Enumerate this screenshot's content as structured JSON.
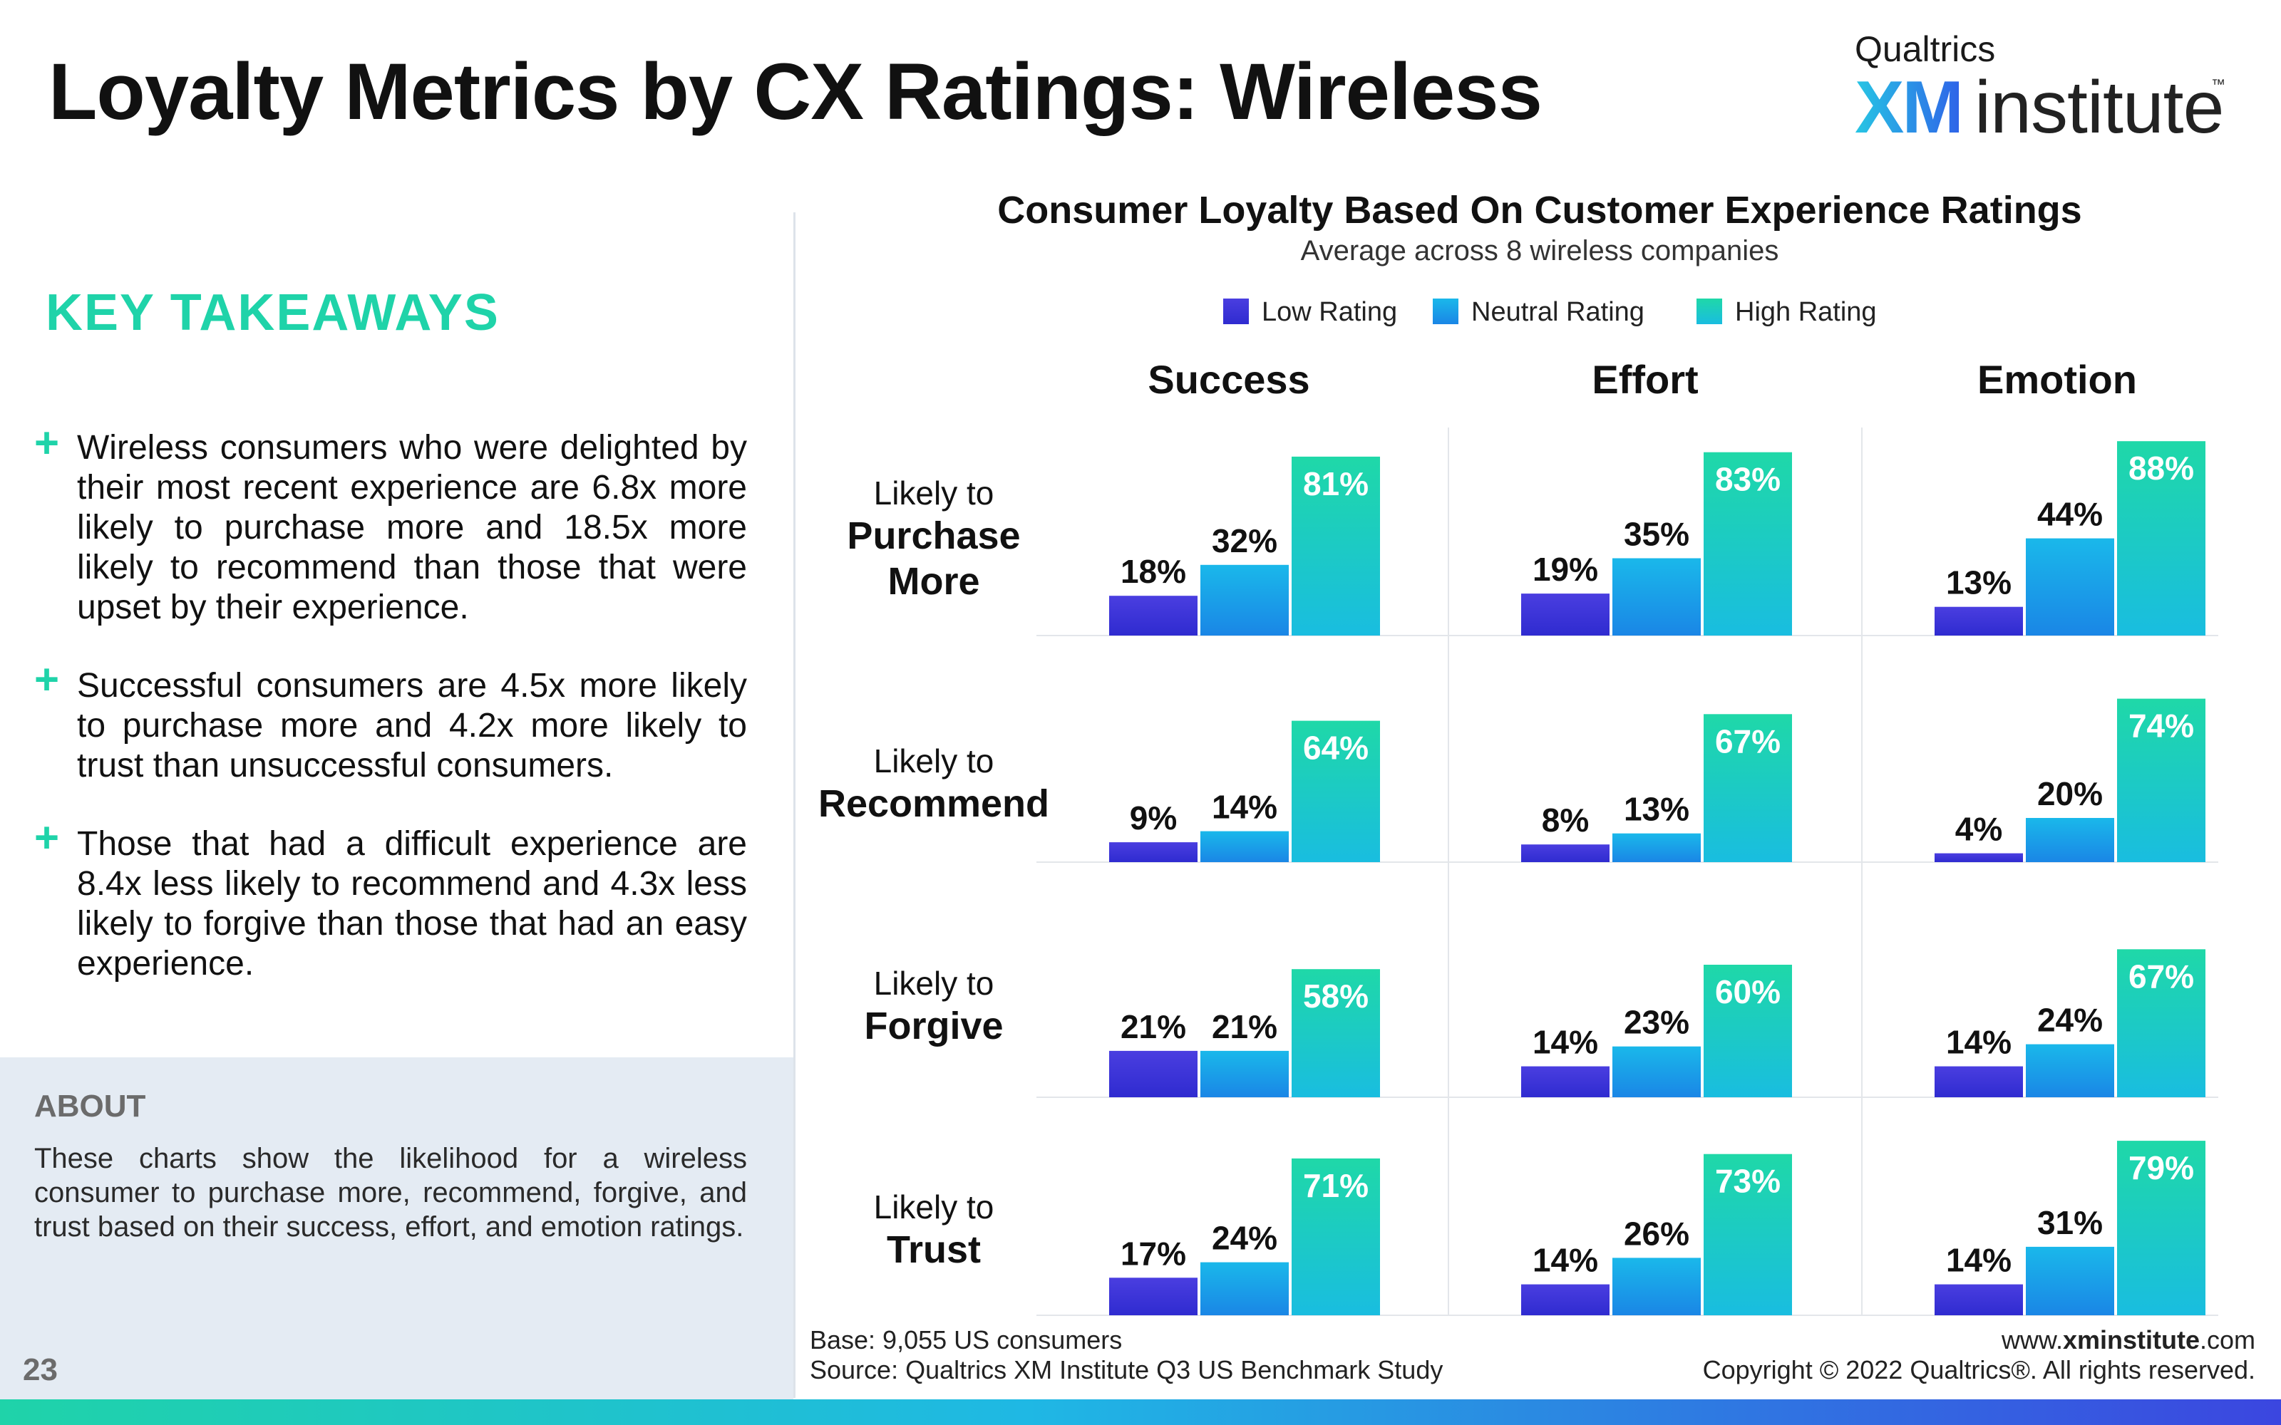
{
  "page": {
    "title": "Loyalty Metrics by CX Ratings: Wireless",
    "page_number": "23",
    "logo": {
      "brand": "Qualtrics",
      "xm": "XM",
      "institute": "institute",
      "tm": "™"
    }
  },
  "key_takeaways": {
    "heading": "KEY TAKEAWAYS",
    "items": [
      "Wireless consumers who were delighted by their most recent experience are 6.8x more likely to purchase more and 18.5x more likely to recommend than those that were upset by their experience.",
      "Successful consumers are 4.5x more likely to purchase more and 4.2x more likely to trust than unsuccessful consumers.",
      "Those that had a difficult experience are 8.4x less likely to recommend and 4.3x less likely to forgive than those that had an easy experience."
    ]
  },
  "about": {
    "heading": "ABOUT",
    "text": "These charts show the likelihood for a wireless consumer to purchase more, recommend, forgive, and trust based on their success, effort, and emotion ratings."
  },
  "footer": {
    "base": "Base: 9,055 US consumers",
    "source": "Source: Qualtrics XM Institute Q3 US Benchmark Study",
    "url_prefix": "www.",
    "url_bold": "xminstitute",
    "url_suffix": ".com",
    "copyright": "Copyright © 2022 Qualtrics®. All rights reserved."
  },
  "colors": {
    "accent_green": "#1fd3a9",
    "low_top": "#4a3ee0",
    "low_bottom": "#2f2bd0",
    "neutral_top": "#1ab8ea",
    "neutral_bottom": "#1a86e6",
    "high_top": "#1fd8a8",
    "high_bottom": "#19bde0"
  },
  "chart_data": {
    "type": "bar",
    "title": "Consumer Loyalty Based On Customer Experience Ratings",
    "subtitle": "Average across 8 wireless companies",
    "legend": [
      "Low Rating",
      "Neutral Rating",
      "High Rating"
    ],
    "legend_placement": "top-center",
    "ylim": [
      0,
      100
    ],
    "grid": false,
    "columns": [
      "Success",
      "Effort",
      "Emotion"
    ],
    "rows": [
      {
        "prefix": "Likely to",
        "main": [
          "Purchase",
          "More"
        ]
      },
      {
        "prefix": "Likely to",
        "main": [
          "Recommend"
        ]
      },
      {
        "prefix": "Likely to",
        "main": [
          "Forgive"
        ]
      },
      {
        "prefix": "Likely to",
        "main": [
          "Trust"
        ]
      }
    ],
    "values": [
      [
        [
          18,
          32,
          81
        ],
        [
          19,
          35,
          83
        ],
        [
          13,
          44,
          88
        ]
      ],
      [
        [
          9,
          14,
          64
        ],
        [
          8,
          13,
          67
        ],
        [
          4,
          20,
          74
        ]
      ],
      [
        [
          21,
          21,
          58
        ],
        [
          14,
          23,
          60
        ],
        [
          14,
          24,
          67
        ]
      ],
      [
        [
          17,
          24,
          71
        ],
        [
          14,
          26,
          73
        ],
        [
          14,
          31,
          79
        ]
      ]
    ],
    "value_suffix": "%"
  }
}
